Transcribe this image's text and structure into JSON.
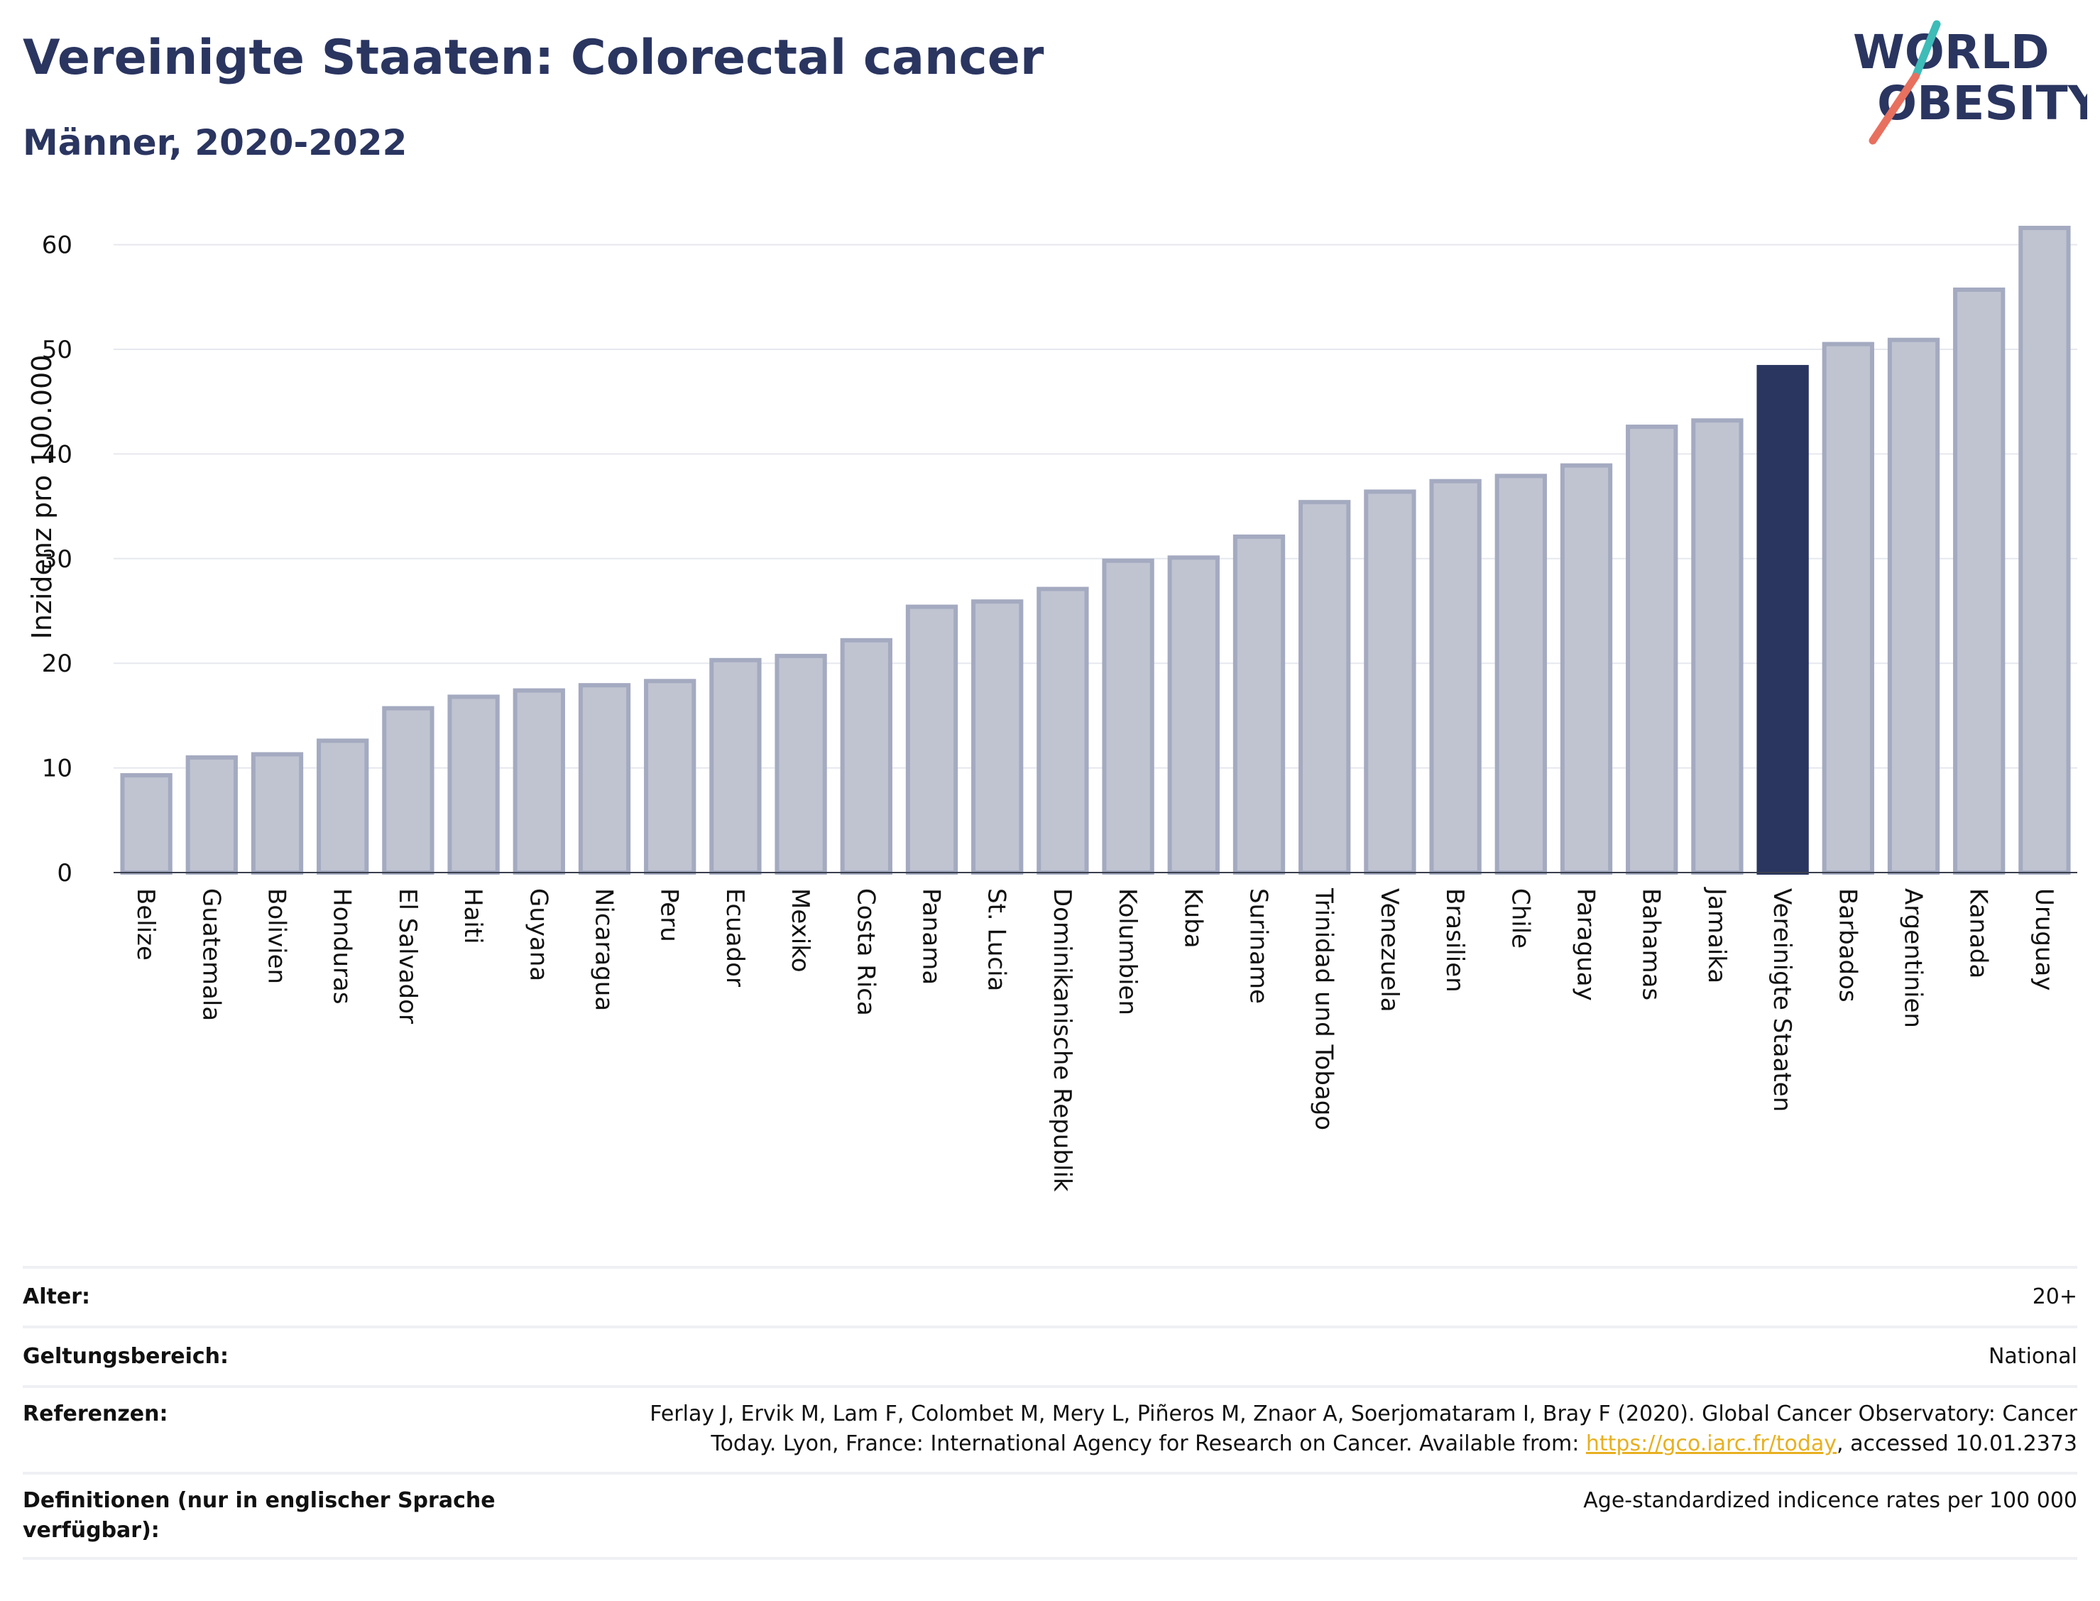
{
  "header": {
    "title": "Vereinigte Staaten: Colorectal cancer",
    "subtitle": "Männer, 2020-2022"
  },
  "logo": {
    "line1": "WORLD",
    "line2": "OBESITY",
    "colors": {
      "text": "#2a3560",
      "slash_top": "#3dbcb8",
      "slash_bottom": "#e8705f"
    }
  },
  "chart_data": {
    "type": "bar",
    "ylabel": "Inzidenz pro 100.000",
    "ylim": [
      0,
      63
    ],
    "yticks": [
      0,
      10,
      20,
      30,
      40,
      50,
      60
    ],
    "grid": true,
    "highlight": "Vereinigte Staaten",
    "colors": {
      "bar": "#c0c4d1",
      "bar_border": "#a4aac0",
      "highlight": "#2a3560",
      "grid": "#e6e8ee"
    },
    "categories": [
      "Belize",
      "Guatemala",
      "Bolivien",
      "Honduras",
      "El Salvador",
      "Haiti",
      "Guyana",
      "Nicaragua",
      "Peru",
      "Ecuador",
      "Mexiko",
      "Costa Rica",
      "Panama",
      "St. Lucia",
      "Dominikanische Republik",
      "Kolumbien",
      "Kuba",
      "Suriname",
      "Trinidad und Tobago",
      "Venezuela",
      "Brasilien",
      "Chile",
      "Paraguay",
      "Bahamas",
      "Jamaika",
      "Vereinigte Staaten",
      "Barbados",
      "Argentinien",
      "Kanada",
      "Uruguay"
    ],
    "values": [
      9.3,
      11.0,
      11.3,
      12.6,
      15.7,
      16.8,
      17.4,
      17.9,
      18.3,
      20.3,
      20.7,
      22.2,
      25.4,
      25.9,
      27.1,
      29.8,
      30.1,
      32.1,
      35.4,
      36.4,
      37.4,
      37.9,
      38.9,
      42.6,
      43.2,
      48.3,
      50.5,
      50.9,
      55.7,
      61.6
    ]
  },
  "meta": {
    "age_label": "Alter:",
    "age_value": "20+",
    "scope_label": "Geltungsbereich:",
    "scope_value": "National",
    "ref_label": "Referenzen:",
    "ref_line1": "Ferlay J, Ervik M, Lam F, Colombet M, Mery L, Piñeros M, Znaor A, Soerjomataram I, Bray F (2020). Global Cancer Observatory: Cancer",
    "ref_line2_pre": "Today. Lyon, France: International Agency for Research on Cancer. Available from: ",
    "ref_link": "https://gco.iarc.fr/today",
    "ref_line2_post": ", accessed 10.01.2373",
    "def_label": "Definitionen (nur in englischer Sprache verfügbar):",
    "def_value": "Age-standardized indicence rates per 100 000"
  }
}
